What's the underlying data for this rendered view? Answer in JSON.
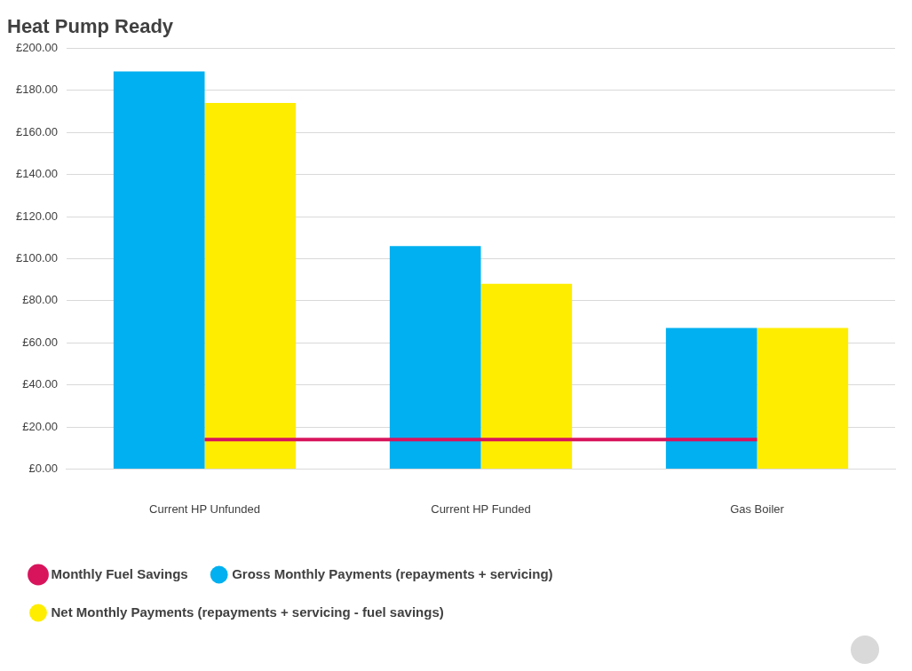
{
  "chart_data": {
    "type": "bar",
    "title": "Heat Pump Ready",
    "categories": [
      "Current HP Unfunded",
      "Current HP Funded",
      "Gas Boiler"
    ],
    "series": [
      {
        "name": "Gross Monthly Payments (repayments + servicing)",
        "color": "#00b0f0",
        "values": [
          189,
          106,
          67
        ]
      },
      {
        "name": "Net Monthly Payments (repayments + servicing - fuel savings)",
        "color": "#ffed00",
        "values": [
          174,
          88,
          67
        ]
      },
      {
        "name": "Monthly Fuel Savings",
        "color": "#d8145c",
        "type": "line",
        "marker": "none",
        "values": [
          14,
          14,
          14
        ]
      }
    ],
    "ylim": [
      0,
      200
    ],
    "yticks": [
      {
        "value": 0,
        "label": "£0.00"
      },
      {
        "value": 20,
        "label": "£20.00"
      },
      {
        "value": 40,
        "label": "£40.00"
      },
      {
        "value": 60,
        "label": "£60.00"
      },
      {
        "value": 80,
        "label": "£80.00"
      },
      {
        "value": 100,
        "label": "£100.00"
      },
      {
        "value": 120,
        "label": "£120.00"
      },
      {
        "value": 140,
        "label": "£140.00"
      },
      {
        "value": 160,
        "label": "£160.00"
      },
      {
        "value": 180,
        "label": "£180.00"
      },
      {
        "value": 200,
        "label": "£200.00"
      }
    ],
    "grid": "y",
    "legend": "bottom"
  }
}
